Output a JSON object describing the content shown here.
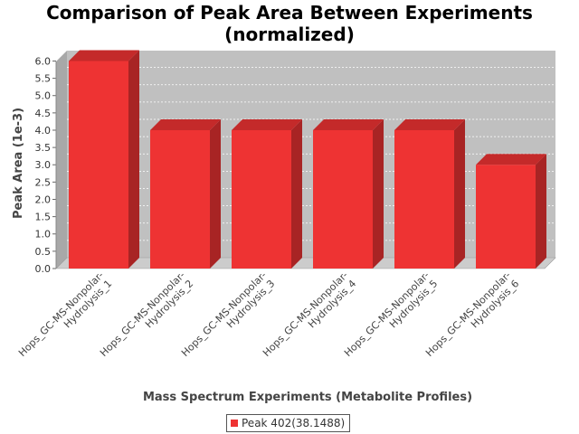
{
  "title_lines": [
    "Comparison of Peak Area Between Experiments",
    "(normalized)"
  ],
  "chart_data": {
    "type": "bar",
    "title": "Comparison of Peak Area Between Experiments (normalized)",
    "xlabel": "Mass Spectrum Experiments (Metabolite Profiles)",
    "ylabel": "Peak Area (1e-3)",
    "categories": [
      [
        "Hops_GC-MS-Nonpolar-",
        "Hydrolysis_1"
      ],
      [
        "Hops_GC-MS-Nonpolar-",
        "Hydrolysis_2"
      ],
      [
        "Hops_GC-MS-Nonpolar-",
        "Hydrolysis_3"
      ],
      [
        "Hops_GC-MS-Nonpolar-",
        "Hydrolysis_4"
      ],
      [
        "Hops_GC-MS-Nonpolar-",
        "Hydrolysis_5"
      ],
      [
        "Hops_GC-MS-Nonpolar-",
        "Hydrolysis_6"
      ]
    ],
    "series": [
      {
        "name": "Peak 402(38.1488)",
        "values": [
          6.0,
          4.0,
          4.0,
          4.0,
          4.0,
          3.0
        ]
      }
    ],
    "yticks": [
      "0.0",
      "0.5",
      "1.0",
      "1.5",
      "2.0",
      "2.5",
      "3.0",
      "3.5",
      "4.0",
      "4.5",
      "5.0",
      "5.5",
      "6.0"
    ],
    "ylim": [
      0,
      6.3
    ],
    "grid": true,
    "legend_position": "bottom",
    "colors": {
      "bar_front": "#ee3333",
      "bar_top": "#c42a2a",
      "bar_side": "#a82424",
      "plot_back": "#c0c0c0",
      "plot_side": "#a8a8a8",
      "plot_floor": "#cccccc"
    }
  }
}
